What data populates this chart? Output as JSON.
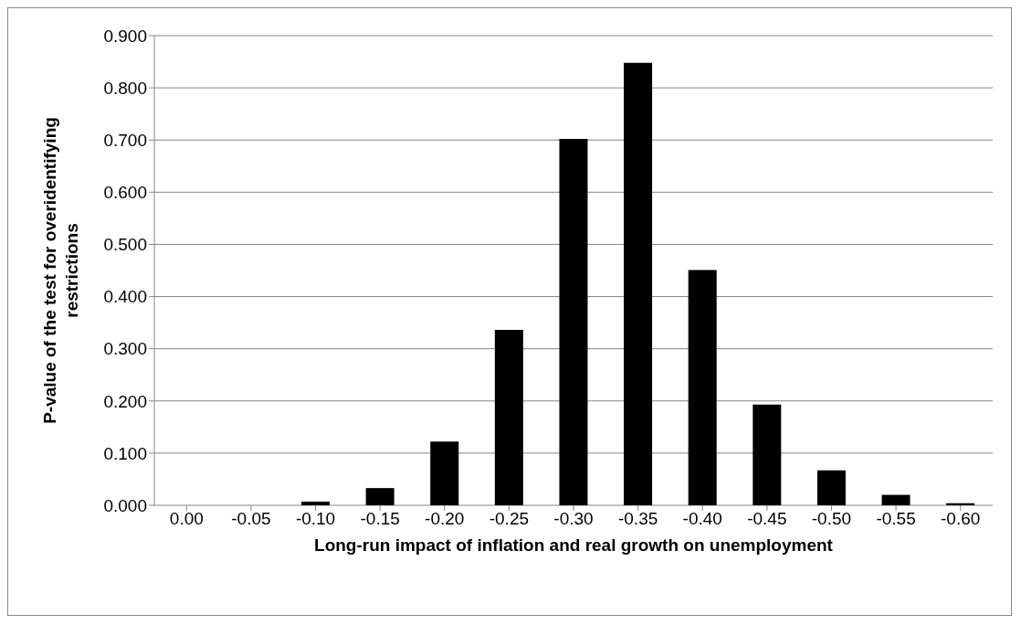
{
  "chart_data": {
    "type": "bar",
    "xlabel": "Long-run impact of inflation and real growth on unemployment",
    "ylabel": "P-value of the test for overidentifying restrictions",
    "categories": [
      "0.00",
      "-0.05",
      "-0.10",
      "-0.15",
      "-0.20",
      "-0.25",
      "-0.30",
      "-0.35",
      "-0.40",
      "-0.45",
      "-0.50",
      "-0.55",
      "-0.60"
    ],
    "values": [
      0,
      0,
      0.007,
      0.033,
      0.122,
      0.336,
      0.702,
      0.848,
      0.451,
      0.193,
      0.067,
      0.02,
      0.004
    ],
    "color": "#000000",
    "ylim": [
      0,
      0.9
    ],
    "yticks": [
      {
        "value": 0,
        "label": "0.000"
      },
      {
        "value": 0.1,
        "label": "0.100"
      },
      {
        "value": 0.2,
        "label": "0.200"
      },
      {
        "value": 0.3,
        "label": "0.300"
      },
      {
        "value": 0.4,
        "label": "0.400"
      },
      {
        "value": 0.5,
        "label": "0.500"
      },
      {
        "value": 0.6,
        "label": "0.600"
      },
      {
        "value": 0.7,
        "label": "0.700"
      },
      {
        "value": 0.8,
        "label": "0.800"
      },
      {
        "value": 0.9,
        "label": "0.900"
      }
    ],
    "grid": "y",
    "legend": false
  }
}
